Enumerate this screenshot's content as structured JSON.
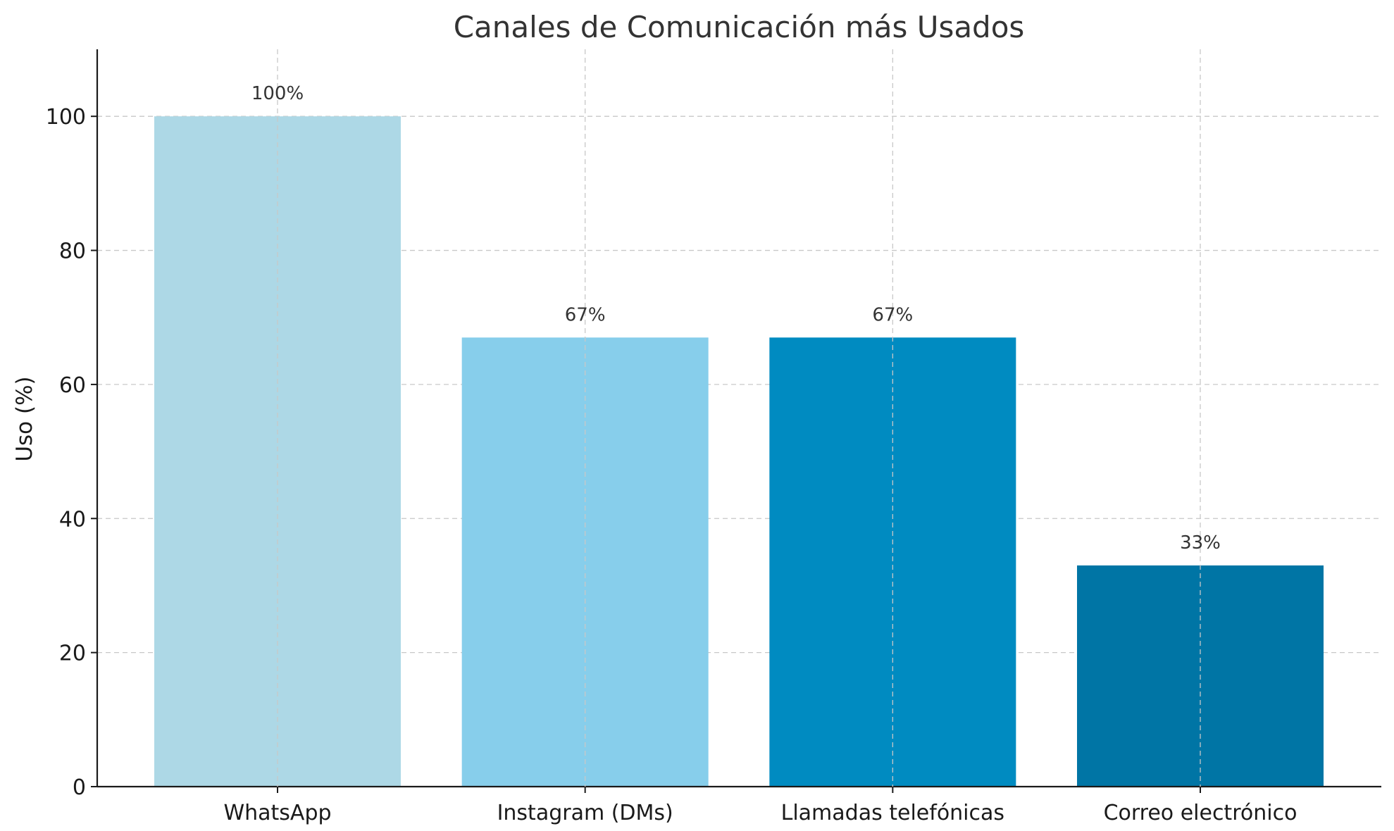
{
  "chart_data": {
    "type": "bar",
    "title": "Canales de Comunicación más Usados",
    "xlabel": "",
    "ylabel": "Uso (%)",
    "categories": [
      "WhatsApp",
      "Instagram (DMs)",
      "Llamadas telefónicas",
      "Correo electrónico"
    ],
    "values": [
      100,
      67,
      67,
      33
    ],
    "value_labels": [
      "100%",
      "67%",
      "67%",
      "33%"
    ],
    "colors": [
      "#add8e6",
      "#87ceeb",
      "#008bc1",
      "#0075a5"
    ],
    "ylim": [
      0,
      110
    ],
    "yticks": [
      0,
      20,
      40,
      60,
      80,
      100
    ],
    "ytick_labels": [
      "0",
      "20",
      "40",
      "60",
      "80",
      "100"
    ],
    "grid": true,
    "legend": "none"
  }
}
